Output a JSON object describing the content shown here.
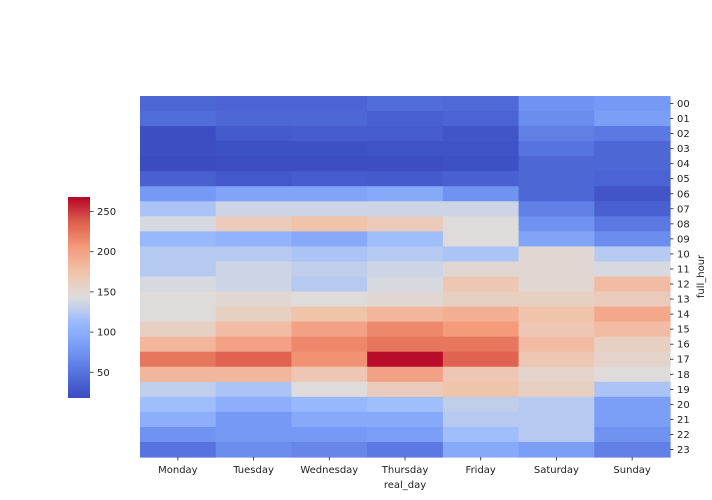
{
  "chart_data": {
    "type": "heatmap",
    "xlabel": "real_day",
    "ylabel": "full_hour",
    "x": [
      "Monday",
      "Tuesday",
      "Wednesday",
      "Thursday",
      "Friday",
      "Saturday",
      "Sunday"
    ],
    "y": [
      "00",
      "01",
      "02",
      "03",
      "04",
      "05",
      "06",
      "07",
      "08",
      "09",
      "10",
      "11",
      "12",
      "13",
      "14",
      "15",
      "16",
      "17",
      "18",
      "19",
      "20",
      "21",
      "22",
      "23"
    ],
    "values": [
      [
        40,
        38,
        38,
        45,
        42,
        75,
        80
      ],
      [
        45,
        40,
        40,
        35,
        38,
        70,
        85
      ],
      [
        20,
        30,
        32,
        32,
        25,
        60,
        55
      ],
      [
        20,
        22,
        22,
        24,
        24,
        50,
        40
      ],
      [
        18,
        20,
        20,
        20,
        22,
        40,
        40
      ],
      [
        35,
        28,
        32,
        30,
        35,
        40,
        38
      ],
      [
        80,
        90,
        90,
        95,
        75,
        40,
        25
      ],
      [
        120,
        135,
        135,
        135,
        135,
        60,
        35
      ],
      [
        140,
        165,
        175,
        165,
        145,
        75,
        55
      ],
      [
        110,
        105,
        95,
        115,
        145,
        90,
        70
      ],
      [
        125,
        125,
        120,
        125,
        120,
        150,
        125
      ],
      [
        125,
        135,
        130,
        135,
        150,
        150,
        140
      ],
      [
        140,
        135,
        125,
        140,
        170,
        150,
        180
      ],
      [
        145,
        150,
        145,
        150,
        160,
        160,
        165
      ],
      [
        145,
        160,
        175,
        185,
        190,
        175,
        195
      ],
      [
        160,
        180,
        200,
        215,
        205,
        170,
        180
      ],
      [
        185,
        200,
        215,
        225,
        225,
        180,
        160
      ],
      [
        225,
        235,
        210,
        265,
        235,
        170,
        155
      ],
      [
        185,
        185,
        170,
        200,
        170,
        155,
        145
      ],
      [
        130,
        120,
        145,
        165,
        175,
        160,
        120
      ],
      [
        115,
        100,
        110,
        115,
        130,
        125,
        85
      ],
      [
        100,
        80,
        95,
        95,
        125,
        125,
        85
      ],
      [
        75,
        80,
        80,
        85,
        115,
        125,
        75
      ],
      [
        50,
        70,
        65,
        55,
        95,
        85,
        60
      ]
    ],
    "colorbar": {
      "ticks": [
        50,
        100,
        150,
        200,
        250
      ],
      "vmin": 18,
      "vmax": 268
    },
    "colormap": "coolwarm"
  }
}
